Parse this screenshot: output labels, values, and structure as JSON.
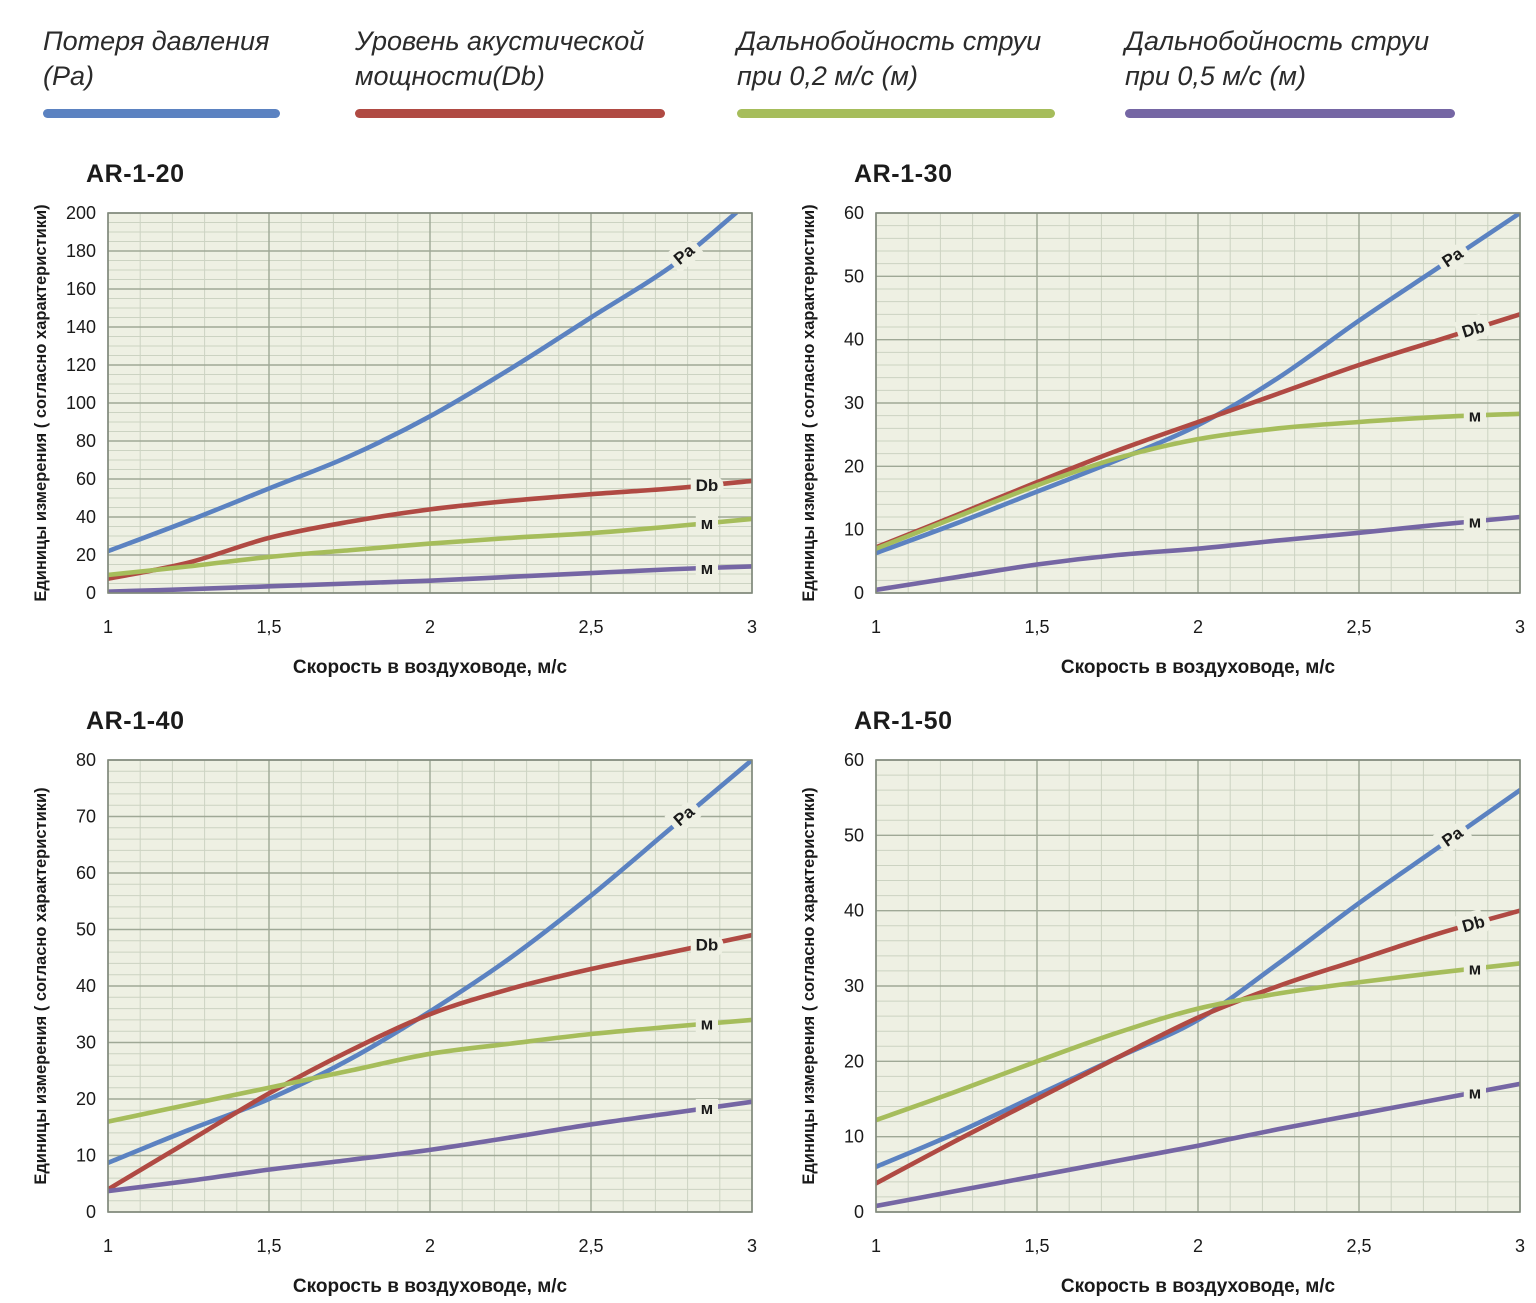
{
  "theme": {
    "page_background": "#ffffff",
    "plot_background": "#eef0e3",
    "grid_minor": "#ccd3c2",
    "grid_major": "#9fa896",
    "plot_border": "#81897c",
    "text": "#1a1a1a",
    "legend_text": "#2b2b2b",
    "series_blue": "#5b82c1",
    "series_red": "#b04a43",
    "series_green": "#a6bd5b",
    "series_purple": "#7566a4"
  },
  "legend": {
    "items": [
      {
        "label": "Потеря давления\n(Pa)",
        "color": "#5b82c1"
      },
      {
        "label": "Уровень акустической\nмощности(Db)",
        "color": "#b04a43"
      },
      {
        "label": "Дальнобойность струи\nпри 0,2 м/с (м)",
        "color": "#a6bd5b"
      },
      {
        "label": "Дальнобойность струи\nпри 0,5 м/с (м)",
        "color": "#7566a4"
      }
    ]
  },
  "chart_data": [
    {
      "type": "line",
      "title": "AR-1-20",
      "xlabel": "Скорость в воздуховоде, м/с",
      "ylabel": "Единицы измерения ( согласно характеристики)",
      "xlim": [
        1,
        3
      ],
      "ylim": [
        0,
        200
      ],
      "x_major": 0.5,
      "x_minor": 0.1,
      "y_major": 20,
      "y_minor": 5,
      "xticks": [
        "1",
        "1,5",
        "2",
        "2,5",
        "3"
      ],
      "yticks": [
        "0",
        "20",
        "40",
        "60",
        "80",
        "100",
        "120",
        "140",
        "160",
        "180",
        "200"
      ],
      "grid": true,
      "series": [
        {
          "name": "Потеря давления (Pa)",
          "tag": "Pa",
          "color": "#5b82c1",
          "points": [
            [
              1,
              22
            ],
            [
              1.25,
              38
            ],
            [
              1.5,
              55
            ],
            [
              1.75,
              72
            ],
            [
              2,
              93
            ],
            [
              2.25,
              118
            ],
            [
              2.5,
              145
            ],
            [
              2.75,
              172
            ],
            [
              2.95,
              200
            ]
          ]
        },
        {
          "name": "Уровень акустической мощности(Db)",
          "tag": "Db",
          "color": "#b04a43",
          "points": [
            [
              1,
              7.5
            ],
            [
              1.25,
              16
            ],
            [
              1.5,
              29
            ],
            [
              1.75,
              37.5
            ],
            [
              2,
              44
            ],
            [
              2.25,
              48.5
            ],
            [
              2.5,
              52
            ],
            [
              2.75,
              55
            ],
            [
              3,
              59
            ]
          ]
        },
        {
          "name": "Дальнобойность струи при 0,2 м/с (м)",
          "tag": "м",
          "color": "#a6bd5b",
          "points": [
            [
              1,
              9.5
            ],
            [
              1.25,
              14
            ],
            [
              1.5,
              19
            ],
            [
              1.75,
              22.5
            ],
            [
              2,
              26
            ],
            [
              2.25,
              29
            ],
            [
              2.5,
              31.5
            ],
            [
              2.75,
              35
            ],
            [
              3,
              39
            ]
          ]
        },
        {
          "name": "Дальнобойность струи при 0,5 м/с (м)",
          "tag": "м",
          "color": "#7566a4",
          "points": [
            [
              1,
              0.7
            ],
            [
              1.25,
              2
            ],
            [
              1.5,
              3.5
            ],
            [
              1.75,
              5
            ],
            [
              2,
              6.5
            ],
            [
              2.25,
              8.5
            ],
            [
              2.5,
              10.5
            ],
            [
              2.75,
              12.5
            ],
            [
              3,
              14
            ]
          ]
        }
      ]
    },
    {
      "type": "line",
      "title": "AR-1-30",
      "xlabel": "Скорость в воздуховоде, м/с",
      "ylabel": "Единицы измерения ( согласно характеристики)",
      "xlim": [
        1,
        3
      ],
      "ylim": [
        0,
        60
      ],
      "x_major": 0.5,
      "x_minor": 0.1,
      "y_major": 10,
      "y_minor": 2,
      "xticks": [
        "1",
        "1,5",
        "2",
        "2,5",
        "3"
      ],
      "yticks": [
        "0",
        "10",
        "20",
        "30",
        "40",
        "50",
        "60"
      ],
      "grid": true,
      "series": [
        {
          "name": "Потеря давления (Pa)",
          "tag": "Pa",
          "color": "#5b82c1",
          "points": [
            [
              1,
              6.3
            ],
            [
              1.25,
              11
            ],
            [
              1.5,
              16
            ],
            [
              1.75,
              21
            ],
            [
              2,
              26.5
            ],
            [
              2.25,
              34
            ],
            [
              2.5,
              43
            ],
            [
              2.75,
              51.5
            ],
            [
              3,
              60
            ]
          ]
        },
        {
          "name": "Уровень акустической мощности(Db)",
          "tag": "Db",
          "color": "#b04a43",
          "points": [
            [
              1,
              7.2
            ],
            [
              1.25,
              12.3
            ],
            [
              1.5,
              17.5
            ],
            [
              1.75,
              22.5
            ],
            [
              2,
              27
            ],
            [
              2.25,
              31.5
            ],
            [
              2.5,
              36
            ],
            [
              2.75,
              40
            ],
            [
              3,
              44
            ]
          ]
        },
        {
          "name": "Дальнобойность струи при 0,2 м/с (м)",
          "tag": "м",
          "color": "#a6bd5b",
          "points": [
            [
              1,
              7
            ],
            [
              1.25,
              12
            ],
            [
              1.5,
              17
            ],
            [
              1.75,
              21.3
            ],
            [
              2,
              24.3
            ],
            [
              2.25,
              26
            ],
            [
              2.5,
              27
            ],
            [
              2.75,
              27.8
            ],
            [
              3,
              28.3
            ]
          ]
        },
        {
          "name": "Дальнобойность струи при 0,5 м/с (м)",
          "tag": "м",
          "color": "#7566a4",
          "points": [
            [
              1,
              0.5
            ],
            [
              1.25,
              2.5
            ],
            [
              1.5,
              4.5
            ],
            [
              1.75,
              6
            ],
            [
              2,
              7
            ],
            [
              2.25,
              8.3
            ],
            [
              2.5,
              9.5
            ],
            [
              2.75,
              10.8
            ],
            [
              3,
              12
            ]
          ]
        }
      ]
    },
    {
      "type": "line",
      "title": "AR-1-40",
      "xlabel": "Скорость в воздуховоде, м/с",
      "ylabel": "Единицы измерения ( согласно характеристики)",
      "xlim": [
        1,
        3
      ],
      "ylim": [
        0,
        80
      ],
      "x_major": 0.5,
      "x_minor": 0.1,
      "y_major": 10,
      "y_minor": 2,
      "xticks": [
        "1",
        "1,5",
        "2",
        "2,5",
        "3"
      ],
      "yticks": [
        "0",
        "10",
        "20",
        "30",
        "40",
        "50",
        "60",
        "70",
        "80"
      ],
      "grid": true,
      "series": [
        {
          "name": "Потеря давления (Pa)",
          "tag": "Pa",
          "color": "#5b82c1",
          "points": [
            [
              1,
              8.7
            ],
            [
              1.25,
              14.5
            ],
            [
              1.5,
              20
            ],
            [
              1.75,
              27
            ],
            [
              2,
              35.5
            ],
            [
              2.25,
              45
            ],
            [
              2.5,
              56
            ],
            [
              2.75,
              68
            ],
            [
              3,
              80
            ]
          ]
        },
        {
          "name": "Уровень акустической мощности(Db)",
          "tag": "Db",
          "color": "#b04a43",
          "points": [
            [
              1,
              4
            ],
            [
              1.25,
              12.5
            ],
            [
              1.5,
              21
            ],
            [
              1.75,
              28.5
            ],
            [
              2,
              35
            ],
            [
              2.25,
              39.5
            ],
            [
              2.5,
              43
            ],
            [
              2.75,
              46
            ],
            [
              3,
              49
            ]
          ]
        },
        {
          "name": "Дальнобойность струи при 0,2 м/с (м)",
          "tag": "м",
          "color": "#a6bd5b",
          "points": [
            [
              1,
              16
            ],
            [
              1.25,
              19
            ],
            [
              1.5,
              22
            ],
            [
              1.75,
              25
            ],
            [
              2,
              28
            ],
            [
              2.25,
              29.8
            ],
            [
              2.5,
              31.5
            ],
            [
              2.75,
              32.8
            ],
            [
              3,
              34
            ]
          ]
        },
        {
          "name": "Дальнобойность струи при 0,5 м/с (м)",
          "tag": "м",
          "color": "#7566a4",
          "points": [
            [
              1,
              3.7
            ],
            [
              1.25,
              5.5
            ],
            [
              1.5,
              7.5
            ],
            [
              1.75,
              9.2
            ],
            [
              2,
              11
            ],
            [
              2.25,
              13.2
            ],
            [
              2.5,
              15.5
            ],
            [
              2.75,
              17.5
            ],
            [
              3,
              19.5
            ]
          ]
        }
      ]
    },
    {
      "type": "line",
      "title": "AR-1-50",
      "xlabel": "Скорость в воздуховоде, м/с",
      "ylabel": "Единицы измерения ( согласно характеристики)",
      "xlim": [
        1,
        3
      ],
      "ylim": [
        0,
        60
      ],
      "x_major": 0.5,
      "x_minor": 0.1,
      "y_major": 10,
      "y_minor": 2,
      "xticks": [
        "1",
        "1,5",
        "2",
        "2,5",
        "3"
      ],
      "yticks": [
        "0",
        "10",
        "20",
        "30",
        "40",
        "50",
        "60"
      ],
      "grid": true,
      "series": [
        {
          "name": "Потеря давления (Pa)",
          "tag": "Pa",
          "color": "#5b82c1",
          "points": [
            [
              1,
              6
            ],
            [
              1.25,
              10.5
            ],
            [
              1.5,
              15.5
            ],
            [
              1.75,
              20.5
            ],
            [
              2,
              25.5
            ],
            [
              2.25,
              33
            ],
            [
              2.5,
              41
            ],
            [
              2.75,
              48.5
            ],
            [
              3,
              56
            ]
          ]
        },
        {
          "name": "Уровень акустической мощности(Db)",
          "tag": "Db",
          "color": "#b04a43",
          "points": [
            [
              1,
              3.8
            ],
            [
              1.25,
              9.5
            ],
            [
              1.5,
              15
            ],
            [
              1.75,
              20.5
            ],
            [
              2,
              25.8
            ],
            [
              2.25,
              30
            ],
            [
              2.5,
              33.5
            ],
            [
              2.75,
              37
            ],
            [
              3,
              40
            ]
          ]
        },
        {
          "name": "Дальнобойность струи при 0,2 м/с (м)",
          "tag": "м",
          "color": "#a6bd5b",
          "points": [
            [
              1,
              12.2
            ],
            [
              1.25,
              16
            ],
            [
              1.5,
              20
            ],
            [
              1.75,
              23.8
            ],
            [
              2,
              27
            ],
            [
              2.25,
              29
            ],
            [
              2.5,
              30.5
            ],
            [
              2.75,
              31.8
            ],
            [
              3,
              33
            ]
          ]
        },
        {
          "name": "Дальнобойность струи при 0,5 м/с (м)",
          "tag": "м",
          "color": "#7566a4",
          "points": [
            [
              1,
              0.8
            ],
            [
              1.25,
              2.8
            ],
            [
              1.5,
              4.8
            ],
            [
              1.75,
              6.8
            ],
            [
              2,
              8.8
            ],
            [
              2.25,
              11
            ],
            [
              2.5,
              13
            ],
            [
              2.75,
              15
            ],
            [
              3,
              17
            ]
          ]
        }
      ]
    }
  ]
}
